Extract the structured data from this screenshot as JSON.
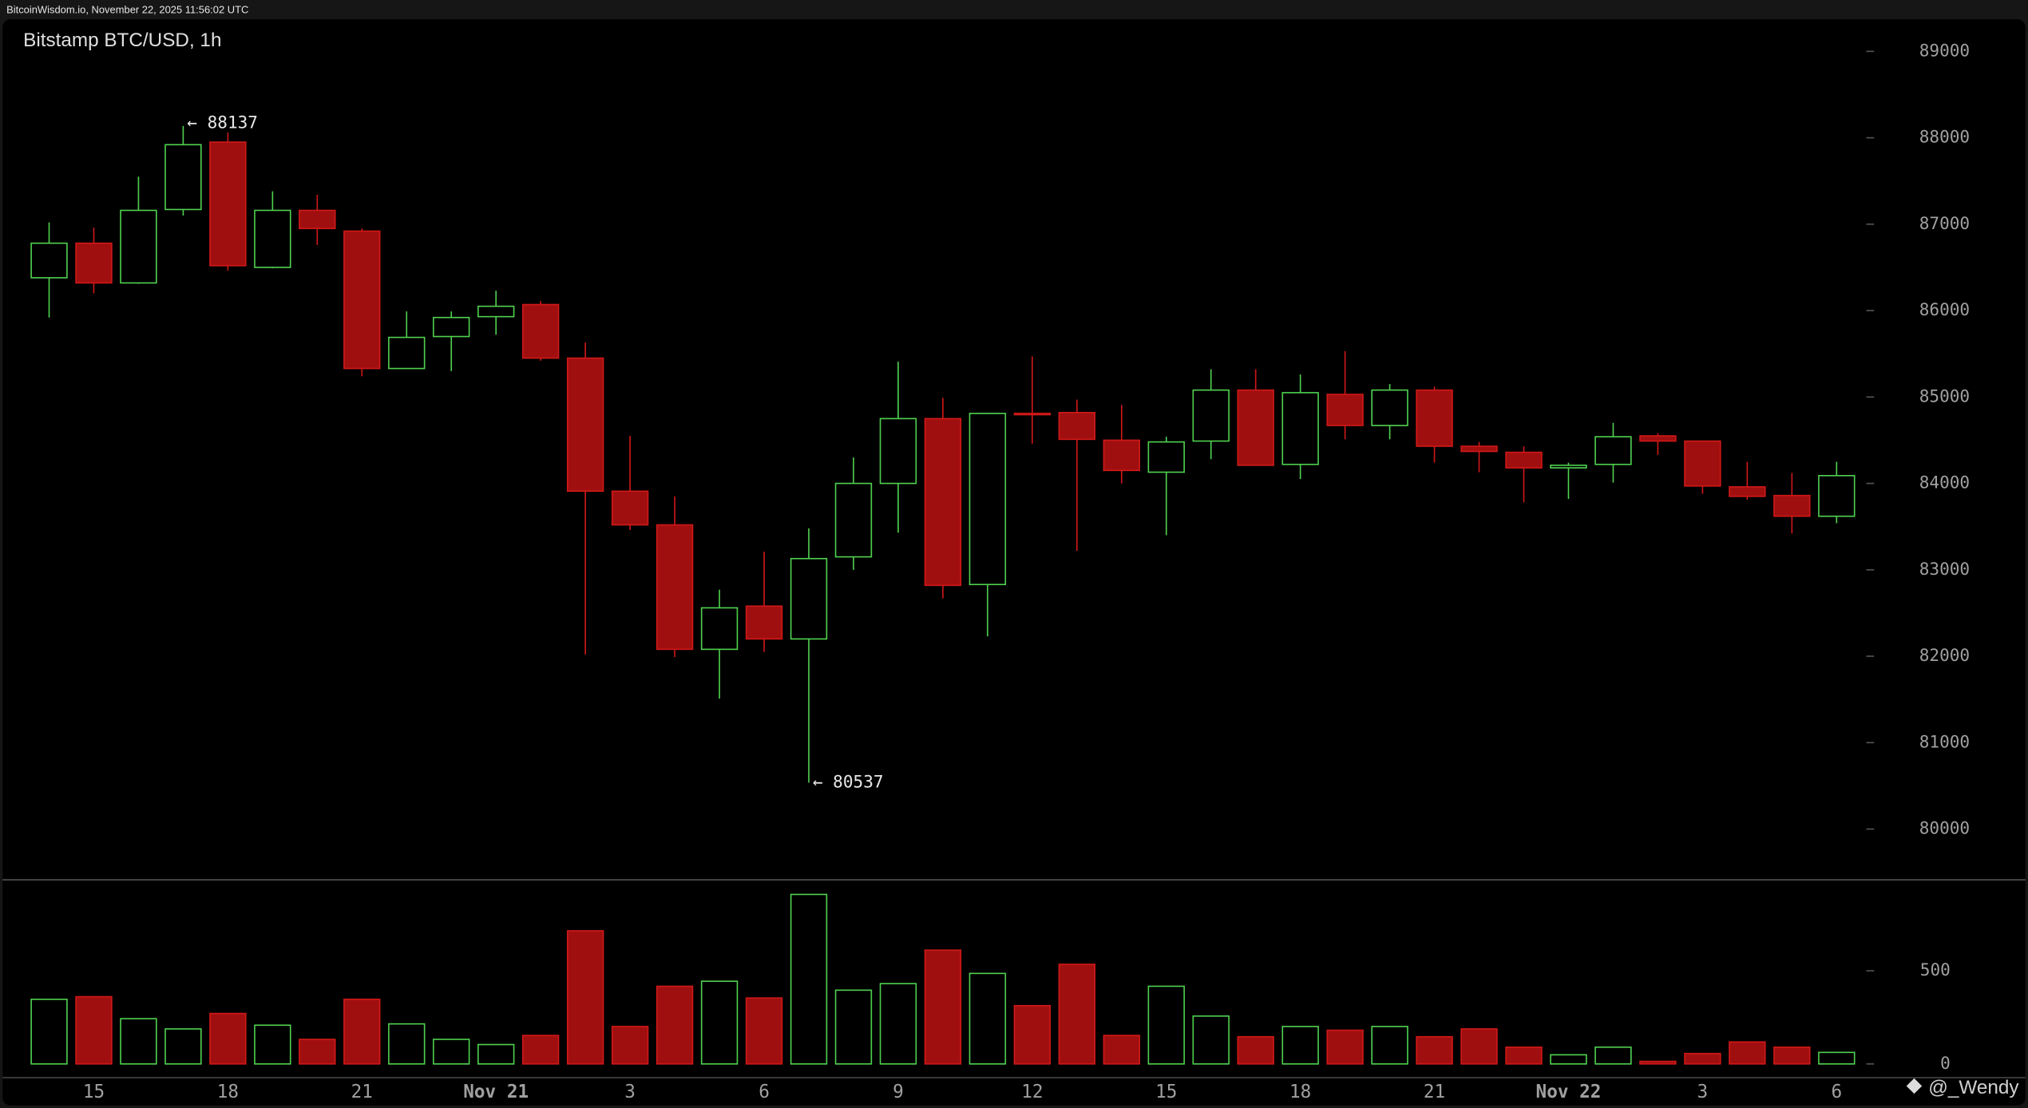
{
  "header": "BitcoinWisdom.io, November 22, 2025 11:56:02 UTC",
  "watermark": "@_Wendy",
  "chart_data": {
    "type": "candlestick",
    "title": "Bitstamp BTC/USD, 1h",
    "categories": [
      null,
      "15",
      null,
      null,
      "18",
      null,
      null,
      "21",
      null,
      null,
      "Nov 21",
      null,
      null,
      "3",
      null,
      null,
      "6",
      null,
      null,
      "9",
      null,
      null,
      "12",
      null,
      null,
      "15",
      null,
      null,
      "18",
      null,
      null,
      "21",
      null,
      null,
      "Nov 22",
      null,
      null,
      "3",
      null,
      null,
      "6"
    ],
    "open": [
      86380,
      86780,
      86320,
      87170,
      87950,
      86500,
      87160,
      86920,
      85330,
      85700,
      85930,
      86070,
      85450,
      83910,
      83520,
      82080,
      82580,
      82200,
      83150,
      84000,
      84750,
      82830,
      84810,
      84820,
      84500,
      84130,
      84490,
      85080,
      84220,
      85030,
      84670,
      85080,
      84430,
      84360,
      84180,
      84220,
      84550,
      84490,
      83960,
      83860,
      83620
    ],
    "high": [
      87020,
      86960,
      87550,
      88137,
      88060,
      87380,
      87340,
      86950,
      85990,
      85990,
      86230,
      86110,
      85630,
      84550,
      83850,
      82770,
      83210,
      83480,
      84300,
      85410,
      84990,
      84810,
      85470,
      84970,
      84910,
      84540,
      85320,
      85320,
      85260,
      85530,
      85150,
      85120,
      84480,
      84430,
      84240,
      84700,
      84580,
      84490,
      84250,
      84120,
      84250
    ],
    "low": [
      85920,
      86200,
      86310,
      87100,
      86460,
      86490,
      86760,
      85240,
      85330,
      85300,
      85720,
      85420,
      82020,
      83460,
      81990,
      81510,
      82050,
      80537,
      83000,
      83430,
      82670,
      82230,
      84460,
      83220,
      84000,
      83400,
      84280,
      84210,
      84050,
      84510,
      84510,
      84240,
      84130,
      83780,
      83820,
      84010,
      84330,
      83880,
      83810,
      83420,
      83540
    ],
    "close": [
      86780,
      86320,
      87160,
      87920,
      86520,
      87160,
      86950,
      85330,
      85690,
      85920,
      86050,
      85450,
      83910,
      83520,
      82080,
      82560,
      82200,
      83130,
      84000,
      84750,
      82820,
      84810,
      84800,
      84510,
      84150,
      84480,
      85080,
      84210,
      85050,
      84670,
      85080,
      84430,
      84370,
      84180,
      84210,
      84540,
      84490,
      83970,
      83850,
      83620,
      84090
    ],
    "volume": [
      347,
      361,
      243,
      188,
      271,
      208,
      132,
      347,
      215,
      132,
      104,
      153,
      715,
      201,
      417,
      444,
      354,
      910,
      396,
      431,
      611,
      486,
      313,
      535,
      153,
      417,
      257,
      146,
      201,
      181,
      201,
      146,
      188,
      90,
      49,
      90,
      14,
      56,
      118,
      90,
      62
    ],
    "up_color": "#4fd04f",
    "down_color": "#a00f0f",
    "ylim": [
      79420,
      89370
    ],
    "yticks": [
      80000,
      81000,
      82000,
      83000,
      84000,
      85000,
      86000,
      87000,
      88000,
      89000
    ],
    "y2lim": [
      -70,
      985
    ],
    "y2ticks": [
      0,
      500
    ],
    "annotations": [
      "← 88137",
      "← 80537"
    ]
  }
}
